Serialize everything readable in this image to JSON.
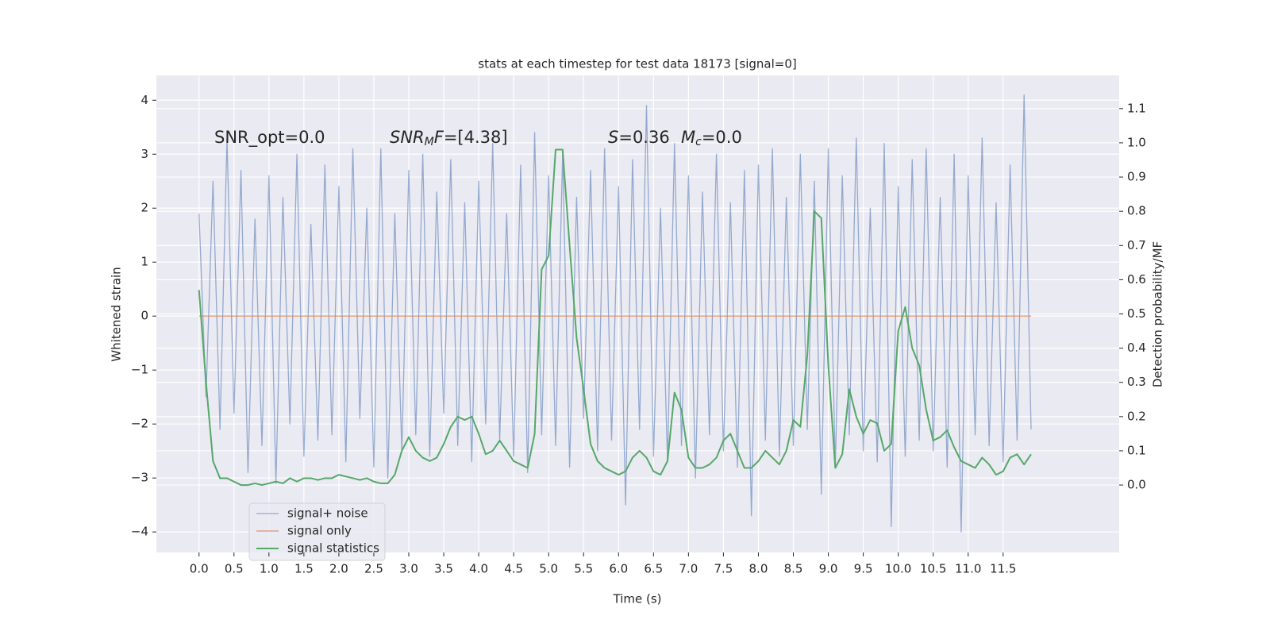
{
  "chart_data": {
    "type": "line",
    "title": "stats at each timestep for test data 18173 [signal=0]",
    "xlabel": "Time (s)",
    "ylabel": "Whitened strain",
    "y2label": "Detection probability/MF",
    "annotations": [
      {
        "parts": [
          {
            "text": "SNR_opt=0.0"
          }
        ]
      },
      {
        "parts": [
          {
            "text": "SNR",
            "italic": true
          },
          {
            "text": "M",
            "italic": true,
            "sub": true
          },
          {
            "text": "F",
            "italic": true
          },
          {
            "text": "=[4.38]"
          }
        ]
      },
      {
        "parts": [
          {
            "text": "S",
            "italic": true
          },
          {
            "text": "=0.36"
          }
        ]
      },
      {
        "parts": [
          {
            "text": "M",
            "italic": true
          },
          {
            "text": "c",
            "italic": true,
            "sub": true
          },
          {
            "text": "=0.0"
          }
        ]
      }
    ],
    "legend": "lower left",
    "grid": true,
    "xlim": [
      -0.61,
      13.16
    ],
    "ylim": [
      -4.38,
      4.46
    ],
    "y2lim": [
      -0.197,
      1.197
    ],
    "xticks": [
      {
        "value": 0,
        "label": "0.0"
      },
      0.5,
      {
        "value": 1,
        "label": "1.0"
      },
      1.5,
      {
        "value": 2,
        "label": "2.0"
      },
      2.5,
      {
        "value": 3,
        "label": "3.0"
      },
      3.5,
      {
        "value": 4,
        "label": "4.0"
      },
      4.5,
      {
        "value": 5,
        "label": "5.0"
      },
      5.5,
      {
        "value": 6,
        "label": "6.0"
      },
      6.5,
      {
        "value": 7,
        "label": "7.0"
      },
      7.5,
      {
        "value": 8,
        "label": "8.0"
      },
      8.5,
      {
        "value": 9,
        "label": "9.0"
      },
      9.5,
      {
        "value": 10,
        "label": "10.0"
      },
      10.5,
      {
        "value": 11,
        "label": "11.0"
      },
      11.5
    ],
    "yticks": [
      {
        "value": -4,
        "label": "−4"
      },
      {
        "value": -3,
        "label": "−3"
      },
      {
        "value": -2,
        "label": "−2"
      },
      {
        "value": -1,
        "label": "−1"
      },
      0,
      1,
      2,
      3,
      4
    ],
    "y2ticks": [
      {
        "value": 0,
        "label": "0.0"
      },
      0.1,
      0.2,
      0.3,
      0.4,
      0.5,
      0.6,
      0.7,
      0.8,
      0.9,
      {
        "value": 1,
        "label": "1.0"
      },
      1.1
    ],
    "x": [
      0,
      0.1,
      0.2,
      0.3,
      0.4,
      0.5,
      0.6,
      0.7,
      0.8,
      0.9,
      1,
      1.1,
      1.2,
      1.3,
      1.4,
      1.5,
      1.6,
      1.7,
      1.8,
      1.9,
      2,
      2.1,
      2.2,
      2.3,
      2.4,
      2.5,
      2.6,
      2.7,
      2.8,
      2.9,
      3,
      3.1,
      3.2,
      3.3,
      3.4,
      3.5,
      3.6,
      3.7,
      3.8,
      3.9,
      4,
      4.1,
      4.2,
      4.3,
      4.4,
      4.5,
      4.6,
      4.7,
      4.8,
      4.9,
      5,
      5.1,
      5.2,
      5.3,
      5.4,
      5.5,
      5.6,
      5.7,
      5.8,
      5.9,
      6,
      6.1,
      6.2,
      6.3,
      6.4,
      6.5,
      6.6,
      6.7,
      6.8,
      6.9,
      7,
      7.1,
      7.2,
      7.3,
      7.4,
      7.5,
      7.6,
      7.7,
      7.8,
      7.9,
      8,
      8.1,
      8.2,
      8.3,
      8.4,
      8.5,
      8.6,
      8.7,
      8.8,
      8.9,
      9,
      9.1,
      9.2,
      9.3,
      9.4,
      9.5,
      9.6,
      9.7,
      9.8,
      9.9,
      10,
      10.1,
      10.2,
      10.3,
      10.4,
      10.5,
      10.6,
      10.7,
      10.8,
      10.9,
      11,
      11.1,
      11.2,
      11.3,
      11.4,
      11.5,
      11.6,
      11.7,
      11.8,
      11.9
    ],
    "series": [
      {
        "name": "signal+ noise",
        "color": "#4c72b0",
        "values": [
          1.9,
          -1.5,
          2.5,
          -2.1,
          3.3,
          -1.8,
          2.7,
          -2.9,
          1.8,
          -2.4,
          2.6,
          -3.1,
          2.2,
          -2.0,
          3.0,
          -2.6,
          1.7,
          -2.3,
          2.8,
          -2.2,
          2.4,
          -2.7,
          3.1,
          -1.9,
          2.0,
          -2.8,
          3.1,
          -3.0,
          1.9,
          -2.5,
          2.7,
          -2.2,
          3.0,
          -2.6,
          2.3,
          -1.8,
          2.9,
          -2.4,
          2.1,
          -2.7,
          2.5,
          -2.0,
          3.2,
          -2.3,
          1.9,
          -2.6,
          2.8,
          -2.9,
          3.4,
          -2.2,
          2.6,
          -2.4,
          3.0,
          -2.8,
          2.2,
          -1.9,
          2.7,
          -2.5,
          3.1,
          -2.3,
          2.4,
          -3.5,
          2.9,
          -2.1,
          3.9,
          -2.6,
          2.0,
          -2.7,
          3.2,
          -2.4,
          2.6,
          -3.0,
          2.3,
          -2.2,
          3.0,
          -2.5,
          2.1,
          -2.8,
          2.7,
          -3.7,
          2.8,
          -2.3,
          3.1,
          -2.6,
          2.2,
          -2.4,
          3.0,
          -2.1,
          2.5,
          -3.3,
          3.1,
          -2.8,
          2.6,
          -2.2,
          3.3,
          -2.5,
          2.0,
          -2.7,
          3.2,
          -3.9,
          2.4,
          -2.6,
          2.9,
          -2.3,
          3.1,
          -2.5,
          2.2,
          -2.8,
          3.0,
          -4.0,
          2.6,
          -2.2,
          3.3,
          -2.4,
          2.1,
          -2.7,
          2.8,
          -2.3,
          4.1,
          -2.1
        ]
      },
      {
        "name": "signal only",
        "color": "#dd8452",
        "values": [
          0,
          0,
          0,
          0,
          0,
          0,
          0,
          0,
          0,
          0,
          0,
          0,
          0,
          0,
          0,
          0,
          0,
          0,
          0,
          0,
          0,
          0,
          0,
          0,
          0,
          0,
          0,
          0,
          0,
          0,
          0,
          0,
          0,
          0,
          0,
          0,
          0,
          0,
          0,
          0,
          0,
          0,
          0,
          0,
          0,
          0,
          0,
          0,
          0,
          0,
          0,
          0,
          0,
          0,
          0,
          0,
          0,
          0,
          0,
          0,
          0,
          0,
          0,
          0,
          0,
          0,
          0,
          0,
          0,
          0,
          0,
          0,
          0,
          0,
          0,
          0,
          0,
          0,
          0,
          0,
          0,
          0,
          0,
          0,
          0,
          0,
          0,
          0,
          0,
          0,
          0,
          0,
          0,
          0,
          0,
          0,
          0,
          0,
          0,
          0,
          0,
          0,
          0,
          0,
          0,
          0,
          0,
          0,
          0,
          0,
          0,
          0,
          0,
          0,
          0,
          0,
          0,
          0,
          0,
          0
        ]
      },
      {
        "name": "signal statistics",
        "color": "#55a868",
        "axis": "y2",
        "values": [
          0.57,
          0.3,
          0.07,
          0.02,
          0.02,
          0.01,
          0.0,
          0.0,
          0.005,
          0.0,
          0.005,
          0.01,
          0.005,
          0.02,
          0.01,
          0.02,
          0.02,
          0.015,
          0.02,
          0.02,
          0.03,
          0.025,
          0.02,
          0.015,
          0.02,
          0.01,
          0.005,
          0.005,
          0.03,
          0.1,
          0.14,
          0.1,
          0.08,
          0.07,
          0.08,
          0.12,
          0.17,
          0.2,
          0.19,
          0.2,
          0.15,
          0.09,
          0.1,
          0.13,
          0.1,
          0.07,
          0.06,
          0.05,
          0.15,
          0.63,
          0.67,
          0.98,
          0.98,
          0.7,
          0.43,
          0.28,
          0.12,
          0.07,
          0.05,
          0.04,
          0.03,
          0.04,
          0.08,
          0.1,
          0.08,
          0.04,
          0.03,
          0.07,
          0.27,
          0.22,
          0.08,
          0.05,
          0.05,
          0.06,
          0.08,
          0.13,
          0.15,
          0.1,
          0.05,
          0.05,
          0.07,
          0.1,
          0.08,
          0.06,
          0.1,
          0.19,
          0.17,
          0.38,
          0.8,
          0.78,
          0.35,
          0.05,
          0.09,
          0.28,
          0.2,
          0.15,
          0.19,
          0.18,
          0.1,
          0.12,
          0.45,
          0.52,
          0.4,
          0.35,
          0.22,
          0.13,
          0.14,
          0.16,
          0.11,
          0.07,
          0.06,
          0.05,
          0.08,
          0.06,
          0.03,
          0.04,
          0.08,
          0.09,
          0.06,
          0.09
        ]
      }
    ]
  }
}
